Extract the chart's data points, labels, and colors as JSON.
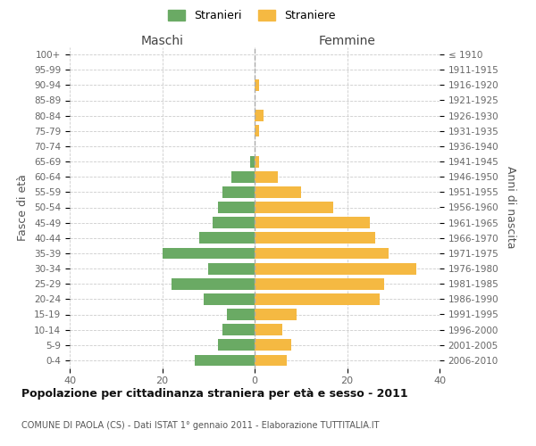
{
  "age_groups": [
    "0-4",
    "5-9",
    "10-14",
    "15-19",
    "20-24",
    "25-29",
    "30-34",
    "35-39",
    "40-44",
    "45-49",
    "50-54",
    "55-59",
    "60-64",
    "65-69",
    "70-74",
    "75-79",
    "80-84",
    "85-89",
    "90-94",
    "95-99",
    "100+"
  ],
  "birth_years": [
    "2006-2010",
    "2001-2005",
    "1996-2000",
    "1991-1995",
    "1986-1990",
    "1981-1985",
    "1976-1980",
    "1971-1975",
    "1966-1970",
    "1961-1965",
    "1956-1960",
    "1951-1955",
    "1946-1950",
    "1941-1945",
    "1936-1940",
    "1931-1935",
    "1926-1930",
    "1921-1925",
    "1916-1920",
    "1911-1915",
    "≤ 1910"
  ],
  "maschi": [
    13,
    8,
    7,
    6,
    11,
    18,
    10,
    20,
    12,
    9,
    8,
    7,
    5,
    1,
    0,
    0,
    0,
    0,
    0,
    0,
    0
  ],
  "femmine": [
    7,
    8,
    6,
    9,
    27,
    28,
    35,
    29,
    26,
    25,
    17,
    10,
    5,
    1,
    0,
    1,
    2,
    0,
    1,
    0,
    0
  ],
  "maschi_color": "#6aaa64",
  "femmine_color": "#f5b942",
  "maschi_label": "Stranieri",
  "femmine_label": "Straniere",
  "title": "Popolazione per cittadinanza straniera per età e sesso - 2011",
  "subtitle": "COMUNE DI PAOLA (CS) - Dati ISTAT 1° gennaio 2011 - Elaborazione TUTTITALIA.IT",
  "ylabel_left": "Fasce di età",
  "ylabel_right": "Anni di nascita",
  "xlim": 40,
  "background_color": "#ffffff",
  "grid_color": "#cccccc",
  "bar_height": 0.75
}
